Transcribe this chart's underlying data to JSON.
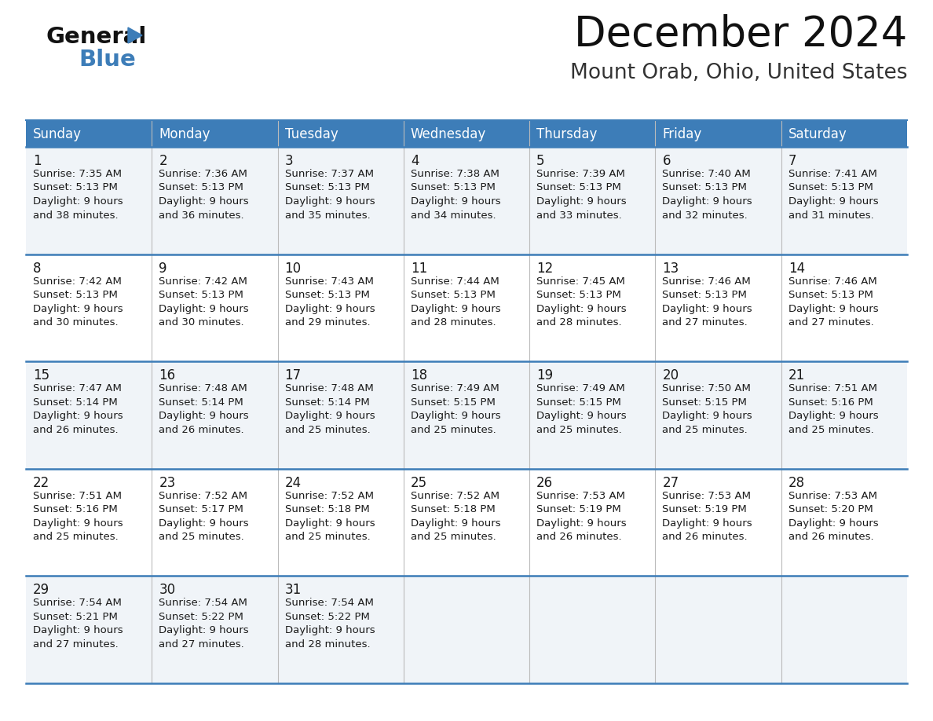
{
  "title": "December 2024",
  "subtitle": "Mount Orab, Ohio, United States",
  "header_color": "#3d7db8",
  "header_text_color": "#ffffff",
  "cell_bg_even": "#f0f4f8",
  "cell_bg_odd": "#ffffff",
  "separator_color": "#3d7db8",
  "text_color": "#1a1a1a",
  "grid_color": "#aaaaaa",
  "days_of_week": [
    "Sunday",
    "Monday",
    "Tuesday",
    "Wednesday",
    "Thursday",
    "Friday",
    "Saturday"
  ],
  "weeks": [
    [
      {
        "day": 1,
        "sunrise": "7:35 AM",
        "sunset": "5:13 PM",
        "daylight_hours": 9,
        "daylight_minutes": 38
      },
      {
        "day": 2,
        "sunrise": "7:36 AM",
        "sunset": "5:13 PM",
        "daylight_hours": 9,
        "daylight_minutes": 36
      },
      {
        "day": 3,
        "sunrise": "7:37 AM",
        "sunset": "5:13 PM",
        "daylight_hours": 9,
        "daylight_minutes": 35
      },
      {
        "day": 4,
        "sunrise": "7:38 AM",
        "sunset": "5:13 PM",
        "daylight_hours": 9,
        "daylight_minutes": 34
      },
      {
        "day": 5,
        "sunrise": "7:39 AM",
        "sunset": "5:13 PM",
        "daylight_hours": 9,
        "daylight_minutes": 33
      },
      {
        "day": 6,
        "sunrise": "7:40 AM",
        "sunset": "5:13 PM",
        "daylight_hours": 9,
        "daylight_minutes": 32
      },
      {
        "day": 7,
        "sunrise": "7:41 AM",
        "sunset": "5:13 PM",
        "daylight_hours": 9,
        "daylight_minutes": 31
      }
    ],
    [
      {
        "day": 8,
        "sunrise": "7:42 AM",
        "sunset": "5:13 PM",
        "daylight_hours": 9,
        "daylight_minutes": 30
      },
      {
        "day": 9,
        "sunrise": "7:42 AM",
        "sunset": "5:13 PM",
        "daylight_hours": 9,
        "daylight_minutes": 30
      },
      {
        "day": 10,
        "sunrise": "7:43 AM",
        "sunset": "5:13 PM",
        "daylight_hours": 9,
        "daylight_minutes": 29
      },
      {
        "day": 11,
        "sunrise": "7:44 AM",
        "sunset": "5:13 PM",
        "daylight_hours": 9,
        "daylight_minutes": 28
      },
      {
        "day": 12,
        "sunrise": "7:45 AM",
        "sunset": "5:13 PM",
        "daylight_hours": 9,
        "daylight_minutes": 28
      },
      {
        "day": 13,
        "sunrise": "7:46 AM",
        "sunset": "5:13 PM",
        "daylight_hours": 9,
        "daylight_minutes": 27
      },
      {
        "day": 14,
        "sunrise": "7:46 AM",
        "sunset": "5:13 PM",
        "daylight_hours": 9,
        "daylight_minutes": 27
      }
    ],
    [
      {
        "day": 15,
        "sunrise": "7:47 AM",
        "sunset": "5:14 PM",
        "daylight_hours": 9,
        "daylight_minutes": 26
      },
      {
        "day": 16,
        "sunrise": "7:48 AM",
        "sunset": "5:14 PM",
        "daylight_hours": 9,
        "daylight_minutes": 26
      },
      {
        "day": 17,
        "sunrise": "7:48 AM",
        "sunset": "5:14 PM",
        "daylight_hours": 9,
        "daylight_minutes": 25
      },
      {
        "day": 18,
        "sunrise": "7:49 AM",
        "sunset": "5:15 PM",
        "daylight_hours": 9,
        "daylight_minutes": 25
      },
      {
        "day": 19,
        "sunrise": "7:49 AM",
        "sunset": "5:15 PM",
        "daylight_hours": 9,
        "daylight_minutes": 25
      },
      {
        "day": 20,
        "sunrise": "7:50 AM",
        "sunset": "5:15 PM",
        "daylight_hours": 9,
        "daylight_minutes": 25
      },
      {
        "day": 21,
        "sunrise": "7:51 AM",
        "sunset": "5:16 PM",
        "daylight_hours": 9,
        "daylight_minutes": 25
      }
    ],
    [
      {
        "day": 22,
        "sunrise": "7:51 AM",
        "sunset": "5:16 PM",
        "daylight_hours": 9,
        "daylight_minutes": 25
      },
      {
        "day": 23,
        "sunrise": "7:52 AM",
        "sunset": "5:17 PM",
        "daylight_hours": 9,
        "daylight_minutes": 25
      },
      {
        "day": 24,
        "sunrise": "7:52 AM",
        "sunset": "5:18 PM",
        "daylight_hours": 9,
        "daylight_minutes": 25
      },
      {
        "day": 25,
        "sunrise": "7:52 AM",
        "sunset": "5:18 PM",
        "daylight_hours": 9,
        "daylight_minutes": 25
      },
      {
        "day": 26,
        "sunrise": "7:53 AM",
        "sunset": "5:19 PM",
        "daylight_hours": 9,
        "daylight_minutes": 26
      },
      {
        "day": 27,
        "sunrise": "7:53 AM",
        "sunset": "5:19 PM",
        "daylight_hours": 9,
        "daylight_minutes": 26
      },
      {
        "day": 28,
        "sunrise": "7:53 AM",
        "sunset": "5:20 PM",
        "daylight_hours": 9,
        "daylight_minutes": 26
      }
    ],
    [
      {
        "day": 29,
        "sunrise": "7:54 AM",
        "sunset": "5:21 PM",
        "daylight_hours": 9,
        "daylight_minutes": 27
      },
      {
        "day": 30,
        "sunrise": "7:54 AM",
        "sunset": "5:22 PM",
        "daylight_hours": 9,
        "daylight_minutes": 27
      },
      {
        "day": 31,
        "sunrise": "7:54 AM",
        "sunset": "5:22 PM",
        "daylight_hours": 9,
        "daylight_minutes": 28
      },
      null,
      null,
      null,
      null
    ]
  ]
}
